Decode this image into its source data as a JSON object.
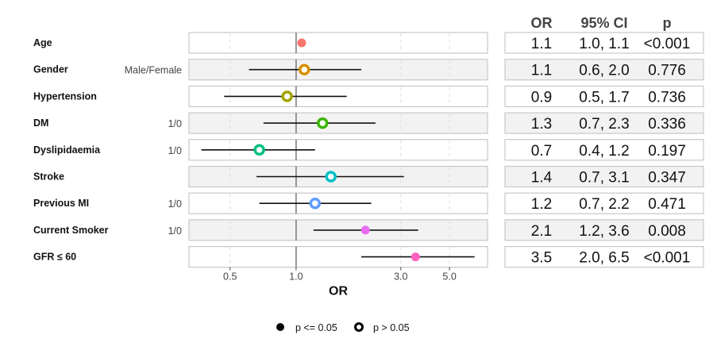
{
  "chart_data": {
    "type": "forest",
    "xlabel": "OR",
    "xscale": "log",
    "xlim": [
      0.325,
      7.45
    ],
    "xticks": [
      "0.5",
      "1.0",
      "3.0",
      "5.0"
    ],
    "xtick_values": [
      0.5,
      1.0,
      3.0,
      5.0
    ],
    "reference_line": 1.0,
    "table_headers": [
      "OR",
      "95% CI",
      "p"
    ],
    "rows": [
      {
        "label": "Age",
        "sublabel": "",
        "or": 1.06,
        "lo": 1.03,
        "hi": 1.09,
        "significant": true,
        "color": "#F8766D",
        "or_text": "1.1",
        "ci_text": "1.0, 1.1",
        "p_text": "<0.001"
      },
      {
        "label": "Gender",
        "sublabel": "Male/Female",
        "or": 1.09,
        "lo": 0.61,
        "hi": 1.98,
        "significant": false,
        "color": "#D89000",
        "or_text": "1.1",
        "ci_text": "0.6, 2.0",
        "p_text": "0.776"
      },
      {
        "label": "Hypertension",
        "sublabel": "",
        "or": 0.91,
        "lo": 0.47,
        "hi": 1.7,
        "significant": false,
        "color": "#A3A500",
        "or_text": "0.9",
        "ci_text": "0.5, 1.7",
        "p_text": "0.736"
      },
      {
        "label": "DM",
        "sublabel": "1/0",
        "or": 1.32,
        "lo": 0.71,
        "hi": 2.3,
        "significant": false,
        "color": "#39B600",
        "or_text": "1.3",
        "ci_text": "0.7, 2.3",
        "p_text": "0.336"
      },
      {
        "label": "Dyslipidaemia",
        "sublabel": "1/0",
        "or": 0.68,
        "lo": 0.37,
        "hi": 1.22,
        "significant": false,
        "color": "#00BF7D",
        "or_text": "0.7",
        "ci_text": "0.4, 1.2",
        "p_text": "0.197"
      },
      {
        "label": "Stroke",
        "sublabel": "",
        "or": 1.44,
        "lo": 0.66,
        "hi": 3.1,
        "significant": false,
        "color": "#00BFC4",
        "or_text": "1.4",
        "ci_text": "0.7, 3.1",
        "p_text": "0.347"
      },
      {
        "label": "Previous MI",
        "sublabel": "1/0",
        "or": 1.22,
        "lo": 0.68,
        "hi": 2.2,
        "significant": false,
        "color": "#619CFF",
        "or_text": "1.2",
        "ci_text": "0.7, 2.2",
        "p_text": "0.471"
      },
      {
        "label": "Current Smoker",
        "sublabel": "1/0",
        "or": 2.07,
        "lo": 1.2,
        "hi": 3.6,
        "significant": true,
        "color": "#E76BF3",
        "or_text": "2.1",
        "ci_text": "1.2, 3.6",
        "p_text": "0.008"
      },
      {
        "label": "GFR ≤ 60",
        "sublabel": "",
        "or": 3.5,
        "lo": 1.98,
        "hi": 6.5,
        "significant": true,
        "color": "#FF62BC",
        "or_text": "3.5",
        "ci_text": "2.0, 6.5",
        "p_text": "<0.001"
      }
    ],
    "legend": [
      {
        "label": "p <= 0.05",
        "filled": true
      },
      {
        "label": "p > 0.05",
        "filled": false
      }
    ],
    "legend_position": "bottom"
  }
}
